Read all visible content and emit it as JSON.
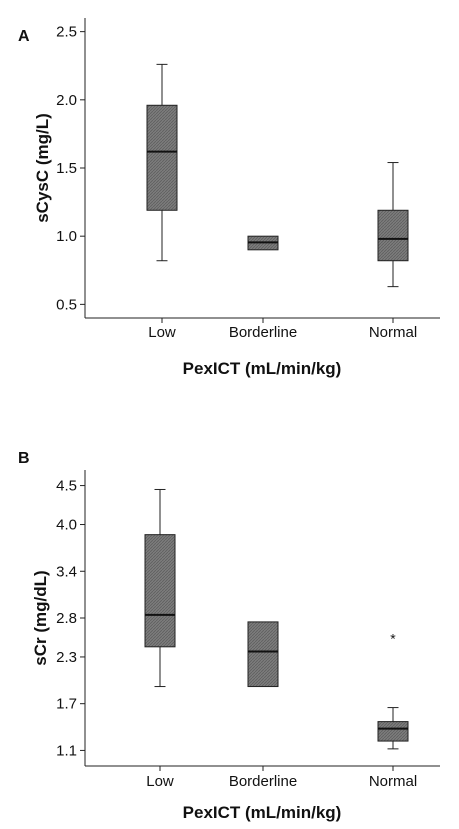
{
  "chart_data": [
    {
      "type": "box",
      "panel": "A",
      "categories": [
        "Low",
        "Borderline",
        "Normal"
      ],
      "boxes": [
        {
          "whisker_low": 0.82,
          "q1": 1.19,
          "median": 1.62,
          "q3": 1.96,
          "whisker_high": 2.26
        },
        {
          "whisker_low": 0.9,
          "q1": 0.9,
          "median": 0.955,
          "q3": 1.0,
          "whisker_high": 1.0
        },
        {
          "whisker_low": 0.63,
          "q1": 0.82,
          "median": 0.98,
          "q3": 1.19,
          "whisker_high": 1.54
        }
      ],
      "outliers": [],
      "yticks": [
        0.5,
        1.0,
        1.5,
        2.0,
        2.5
      ],
      "ytick_labels": [
        "0.5",
        "1.0",
        "1.5",
        "2.0",
        "2.5"
      ],
      "ylim": [
        0.4,
        2.6
      ],
      "xlabel": "PexICT (mL/min/kg)",
      "ylabel": "sCysC (mg/L)",
      "box_color": "#7a7a7a"
    },
    {
      "type": "box",
      "panel": "B",
      "categories": [
        "Low",
        "Borderline",
        "Normal"
      ],
      "boxes": [
        {
          "whisker_low": 1.92,
          "q1": 2.43,
          "median": 2.84,
          "q3": 3.87,
          "whisker_high": 4.45
        },
        {
          "whisker_low": 1.92,
          "q1": 1.92,
          "median": 2.37,
          "q3": 2.75,
          "whisker_high": 2.75
        },
        {
          "whisker_low": 1.12,
          "q1": 1.22,
          "median": 1.38,
          "q3": 1.47,
          "whisker_high": 1.65
        }
      ],
      "outliers": [
        {
          "category": "Normal",
          "value": 2.56,
          "marker": "*"
        }
      ],
      "yticks": [
        1.1,
        1.7,
        2.3,
        2.8,
        3.4,
        4.0,
        4.5
      ],
      "ytick_labels": [
        "1.1",
        "1.7",
        "2.3",
        "2.8",
        "3.4",
        "4.0",
        "4.5"
      ],
      "ylim": [
        0.9,
        4.7
      ],
      "xlabel": "PexICT (mL/min/kg)",
      "ylabel": "sCr (mg/dL)",
      "box_color": "#7a7a7a"
    }
  ]
}
